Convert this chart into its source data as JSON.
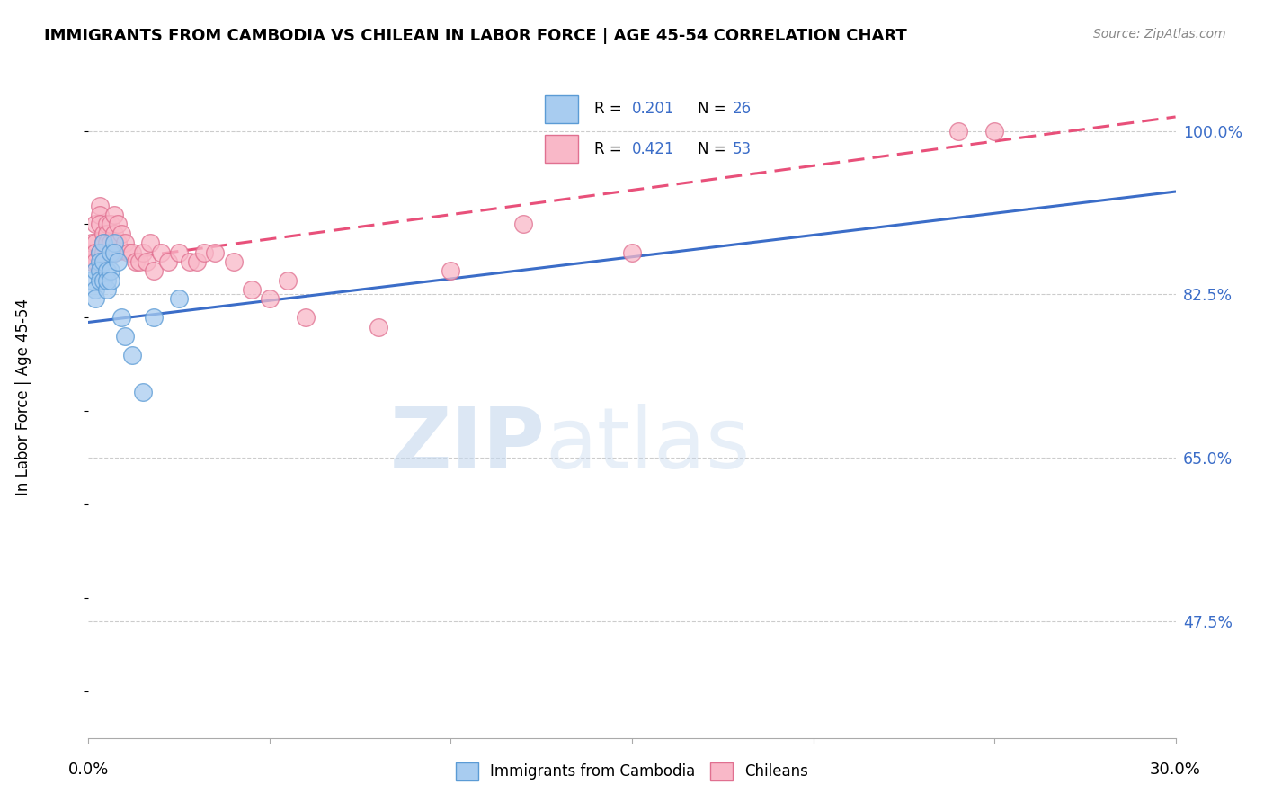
{
  "title": "IMMIGRANTS FROM CAMBODIA VS CHILEAN IN LABOR FORCE | AGE 45-54 CORRELATION CHART",
  "source": "Source: ZipAtlas.com",
  "ylabel": "In Labor Force | Age 45-54",
  "xmin": 0.0,
  "xmax": 0.3,
  "ymin": 0.35,
  "ymax": 1.08,
  "cambodia_color": "#A8CCF0",
  "chilean_color": "#F9B8C8",
  "cambodia_edge": "#5B9BD5",
  "chilean_edge": "#E07090",
  "trend_cambodia_color": "#3B6DC8",
  "trend_chilean_color": "#E8507A",
  "legend_r_cambodia": "R = 0.201",
  "legend_n_cambodia": "N = 26",
  "legend_r_chilean": "R = 0.421",
  "legend_n_chilean": "N = 53",
  "r_color": "#3B6DC8",
  "n_color": "#228B22",
  "ytick_positions": [
    0.475,
    0.65,
    0.825,
    1.0
  ],
  "ytick_labels": [
    "47.5%",
    "65.0%",
    "82.5%",
    "100.0%"
  ],
  "grid_lines": [
    0.475,
    0.65,
    0.825,
    1.0
  ],
  "cambodia_x": [
    0.001,
    0.002,
    0.002,
    0.002,
    0.003,
    0.003,
    0.003,
    0.003,
    0.004,
    0.004,
    0.004,
    0.005,
    0.005,
    0.005,
    0.006,
    0.006,
    0.006,
    0.007,
    0.007,
    0.008,
    0.009,
    0.01,
    0.012,
    0.015,
    0.018,
    0.025
  ],
  "cambodia_y": [
    0.84,
    0.83,
    0.85,
    0.82,
    0.87,
    0.86,
    0.85,
    0.84,
    0.88,
    0.86,
    0.84,
    0.85,
    0.83,
    0.84,
    0.87,
    0.85,
    0.84,
    0.88,
    0.87,
    0.86,
    0.8,
    0.78,
    0.76,
    0.72,
    0.8,
    0.82
  ],
  "chilean_x": [
    0.001,
    0.001,
    0.001,
    0.002,
    0.002,
    0.002,
    0.002,
    0.003,
    0.003,
    0.003,
    0.003,
    0.004,
    0.004,
    0.004,
    0.005,
    0.005,
    0.005,
    0.006,
    0.006,
    0.006,
    0.007,
    0.007,
    0.007,
    0.008,
    0.008,
    0.009,
    0.01,
    0.011,
    0.012,
    0.013,
    0.014,
    0.015,
    0.016,
    0.017,
    0.018,
    0.02,
    0.022,
    0.025,
    0.028,
    0.03,
    0.032,
    0.035,
    0.04,
    0.045,
    0.05,
    0.055,
    0.06,
    0.08,
    0.1,
    0.12,
    0.15,
    0.24,
    0.25
  ],
  "chilean_y": [
    0.87,
    0.88,
    0.86,
    0.9,
    0.88,
    0.87,
    0.86,
    0.92,
    0.91,
    0.9,
    0.87,
    0.89,
    0.88,
    0.87,
    0.9,
    0.89,
    0.88,
    0.9,
    0.88,
    0.87,
    0.91,
    0.89,
    0.87,
    0.9,
    0.88,
    0.89,
    0.88,
    0.87,
    0.87,
    0.86,
    0.86,
    0.87,
    0.86,
    0.88,
    0.85,
    0.87,
    0.86,
    0.87,
    0.86,
    0.86,
    0.87,
    0.87,
    0.86,
    0.83,
    0.82,
    0.84,
    0.8,
    0.79,
    0.85,
    0.9,
    0.87,
    1.0,
    1.0
  ],
  "trend_cam_x0": 0.0,
  "trend_cam_y0": 0.795,
  "trend_cam_x1": 0.3,
  "trend_cam_y1": 0.935,
  "trend_chi_x0": 0.0,
  "trend_chi_y0": 0.858,
  "trend_chi_x1": 0.3,
  "trend_chi_y1": 1.015
}
